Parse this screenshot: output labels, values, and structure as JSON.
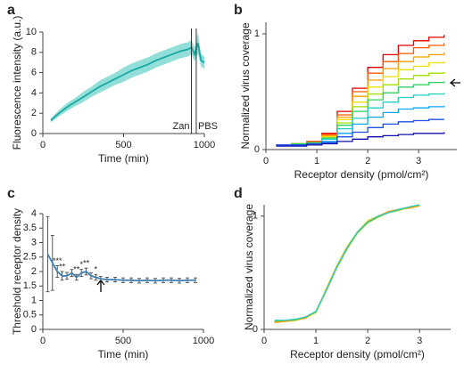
{
  "chart_data": [
    {
      "type": "line",
      "panel": "a",
      "xlabel": "Time (min)",
      "ylabel": "Fluorescence intensity (a.u.)",
      "x": [
        50,
        100,
        150,
        200,
        250,
        300,
        350,
        400,
        450,
        500,
        550,
        600,
        650,
        700,
        750,
        800,
        850,
        900,
        920,
        940,
        960,
        980,
        1000
      ],
      "values": [
        1.3,
        2.0,
        2.6,
        3.1,
        3.6,
        4.1,
        4.6,
        5.0,
        5.4,
        5.8,
        6.2,
        6.5,
        6.8,
        7.2,
        7.5,
        7.8,
        8.1,
        8.3,
        8.5,
        7.8,
        8.9,
        7.2,
        7.0
      ],
      "lower": [
        1.1,
        1.7,
        2.2,
        2.7,
        3.1,
        3.6,
        4.0,
        4.4,
        4.8,
        5.1,
        5.5,
        5.8,
        6.1,
        6.5,
        6.8,
        7.1,
        7.4,
        7.6,
        7.8,
        7.1,
        7.9,
        6.6,
        6.4
      ],
      "upper": [
        1.5,
        2.3,
        3.0,
        3.5,
        4.1,
        4.6,
        5.2,
        5.6,
        6.0,
        6.5,
        6.9,
        7.2,
        7.5,
        7.9,
        8.2,
        8.5,
        8.8,
        9.0,
        9.2,
        8.5,
        9.9,
        7.8,
        7.6
      ],
      "color": "#1aa9a1",
      "band_color": "#92ded8",
      "events": [
        {
          "label": "Zan",
          "x": 920
        },
        {
          "label": "PBS",
          "x": 950
        }
      ],
      "xlim": [
        0,
        1000
      ],
      "xticks": [
        0,
        500,
        1000
      ],
      "ylim": [
        0,
        10
      ],
      "yticks": [
        0,
        2,
        4,
        6,
        8,
        10
      ]
    },
    {
      "type": "line",
      "panel": "b",
      "step": true,
      "xlabel": "Receptor density (pmol/cm²)",
      "ylabel": "Normalized virus coverage",
      "x": [
        0.2,
        0.5,
        0.8,
        1.1,
        1.4,
        1.7,
        2.0,
        2.3,
        2.6,
        2.9,
        3.2,
        3.5
      ],
      "series": [
        {
          "color": "#e00000",
          "values": [
            0.04,
            0.05,
            0.07,
            0.14,
            0.33,
            0.53,
            0.71,
            0.82,
            0.9,
            0.94,
            0.97,
            0.99
          ]
        },
        {
          "color": "#ff5a00",
          "values": [
            0.04,
            0.05,
            0.07,
            0.13,
            0.3,
            0.5,
            0.66,
            0.76,
            0.83,
            0.88,
            0.9,
            0.92
          ]
        },
        {
          "color": "#ffa000",
          "values": [
            0.04,
            0.05,
            0.06,
            0.12,
            0.28,
            0.46,
            0.6,
            0.7,
            0.76,
            0.8,
            0.82,
            0.84
          ]
        },
        {
          "color": "#f0e000",
          "values": [
            0.04,
            0.05,
            0.06,
            0.11,
            0.26,
            0.41,
            0.54,
            0.63,
            0.69,
            0.72,
            0.75,
            0.76
          ]
        },
        {
          "color": "#a0e000",
          "values": [
            0.04,
            0.05,
            0.06,
            0.1,
            0.23,
            0.37,
            0.48,
            0.56,
            0.61,
            0.64,
            0.66,
            0.67
          ]
        },
        {
          "color": "#30d060",
          "values": [
            0.04,
            0.05,
            0.06,
            0.1,
            0.21,
            0.33,
            0.43,
            0.49,
            0.54,
            0.56,
            0.58,
            0.59
          ]
        },
        {
          "color": "#20d0c0",
          "values": [
            0.04,
            0.04,
            0.05,
            0.09,
            0.18,
            0.27,
            0.36,
            0.41,
            0.45,
            0.47,
            0.48,
            0.49
          ]
        },
        {
          "color": "#10a8f0",
          "values": [
            0.04,
            0.04,
            0.05,
            0.07,
            0.14,
            0.22,
            0.28,
            0.32,
            0.35,
            0.36,
            0.37,
            0.38
          ]
        },
        {
          "color": "#2050e0",
          "values": [
            0.04,
            0.04,
            0.05,
            0.06,
            0.11,
            0.15,
            0.19,
            0.22,
            0.24,
            0.25,
            0.26,
            0.26
          ]
        },
        {
          "color": "#1010b0",
          "values": [
            0.03,
            0.03,
            0.04,
            0.05,
            0.07,
            0.09,
            0.11,
            0.12,
            0.13,
            0.14,
            0.14,
            0.15
          ]
        }
      ],
      "xlim": [
        0,
        3.75
      ],
      "xticks": [
        0,
        1,
        2,
        3
      ],
      "ylim": [
        0,
        1.1
      ],
      "yticks": [
        0,
        1
      ]
    },
    {
      "type": "line",
      "panel": "c",
      "xlabel": "Time (min)",
      "ylabel": "Threshold receptor density",
      "x": [
        30,
        60,
        90,
        120,
        150,
        180,
        210,
        240,
        270,
        300,
        330,
        360,
        400,
        450,
        500,
        550,
        600,
        650,
        700,
        750,
        800,
        850,
        900,
        950
      ],
      "values": [
        2.6,
        2.3,
        2.0,
        1.85,
        1.85,
        1.95,
        1.8,
        1.95,
        2.0,
        1.85,
        1.8,
        1.75,
        1.72,
        1.72,
        1.7,
        1.7,
        1.68,
        1.7,
        1.68,
        1.7,
        1.7,
        1.68,
        1.7,
        1.7
      ],
      "errors": [
        1.3,
        0.95,
        0.2,
        0.15,
        0.12,
        0.12,
        0.1,
        0.12,
        0.12,
        0.1,
        0.1,
        0.08,
        0.08,
        0.08,
        0.08,
        0.08,
        0.08,
        0.08,
        0.08,
        0.08,
        0.08,
        0.08,
        0.08,
        0.08
      ],
      "significance": [
        null,
        null,
        "***",
        "**",
        null,
        null,
        "**",
        "*",
        "**",
        null,
        "*",
        null,
        null,
        null,
        null,
        null,
        null,
        null,
        null,
        null,
        null,
        null,
        null,
        null
      ],
      "color": "#3a7fb5",
      "xlim": [
        0,
        1000
      ],
      "xticks": [
        0,
        500,
        1000
      ],
      "ylim": [
        0,
        4
      ],
      "yticks": [
        0,
        0.5,
        1,
        1.5,
        2,
        2.5,
        3,
        3.5,
        4
      ]
    },
    {
      "type": "line",
      "panel": "d",
      "xlabel": "Receptor density (pmol/cm²)",
      "ylabel": "Normalized virus coverage",
      "x": [
        0.2,
        0.4,
        0.6,
        0.8,
        1.0,
        1.2,
        1.4,
        1.6,
        1.8,
        2.0,
        2.2,
        2.4,
        2.6,
        2.8,
        3.0
      ],
      "series": [
        {
          "color": "#ffd400",
          "values": [
            0.07,
            0.07,
            0.08,
            0.1,
            0.15,
            0.36,
            0.56,
            0.73,
            0.86,
            0.96,
            1.0,
            1.03,
            1.06,
            1.08,
            1.09
          ]
        },
        {
          "color": "#ff9a00",
          "values": [
            0.06,
            0.07,
            0.08,
            0.1,
            0.16,
            0.35,
            0.55,
            0.72,
            0.85,
            0.95,
            1.0,
            1.04,
            1.06,
            1.07,
            1.09
          ]
        },
        {
          "color": "#7ccc2a",
          "values": [
            0.07,
            0.08,
            0.08,
            0.11,
            0.15,
            0.34,
            0.54,
            0.71,
            0.85,
            0.94,
            0.99,
            1.03,
            1.05,
            1.08,
            1.1
          ]
        },
        {
          "color": "#35c8c8",
          "values": [
            0.08,
            0.08,
            0.09,
            0.11,
            0.16,
            0.35,
            0.55,
            0.72,
            0.86,
            0.95,
            1.0,
            1.03,
            1.06,
            1.08,
            1.1
          ]
        }
      ],
      "xlim": [
        0,
        3.6
      ],
      "xticks": [
        0,
        1,
        2,
        3
      ],
      "ylim": [
        0,
        1.1
      ],
      "yticks": [
        0,
        1
      ]
    }
  ]
}
